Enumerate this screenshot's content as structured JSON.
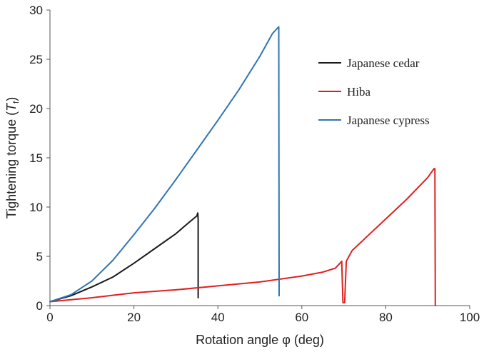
{
  "chart_data": {
    "type": "line",
    "title": "",
    "xlabel": "Rotation angle  φ  (deg)",
    "ylabel_main": "Tightening  torque  (",
    "ylabel_symbol": "T",
    "ylabel_subscript": "f",
    "ylabel_close": ")",
    "xlim": [
      0,
      100
    ],
    "ylim": [
      0,
      30
    ],
    "xticks": [
      0,
      20,
      40,
      60,
      80,
      100
    ],
    "yticks": [
      0,
      5,
      10,
      15,
      20,
      25,
      30
    ],
    "grid": false,
    "legend_position": "top-right",
    "series": [
      {
        "name": "Japanese cedar",
        "color": "#1a1a1a",
        "x": [
          0,
          5,
          10,
          15,
          20,
          25,
          30,
          33,
          35,
          35.2,
          35.3,
          35.3
        ],
        "y": [
          0.4,
          1.0,
          1.9,
          2.9,
          4.3,
          5.8,
          7.3,
          8.4,
          9.1,
          9.4,
          8.8,
          0.8
        ]
      },
      {
        "name": "Hiba",
        "color": "#e02020",
        "x": [
          0,
          10,
          20,
          30,
          40,
          50,
          60,
          65,
          68,
          69.5,
          69.8,
          70.2,
          70.6,
          72,
          75,
          80,
          85,
          90,
          91.5,
          91.7,
          91.8
        ],
        "y": [
          0.4,
          0.8,
          1.3,
          1.6,
          2.0,
          2.4,
          3.0,
          3.4,
          3.8,
          4.5,
          0.3,
          0.3,
          4.5,
          5.6,
          6.8,
          8.8,
          10.8,
          13.0,
          13.9,
          13.9,
          0.0
        ]
      },
      {
        "name": "Japanese cypress",
        "color": "#2f75b5",
        "x": [
          0,
          5,
          10,
          15,
          20,
          25,
          30,
          35,
          40,
          45,
          50,
          53,
          54.5,
          54.6
        ],
        "y": [
          0.4,
          1.1,
          2.5,
          4.6,
          7.2,
          9.9,
          12.8,
          15.8,
          18.8,
          21.9,
          25.3,
          27.6,
          28.3,
          1.0
        ]
      }
    ]
  }
}
